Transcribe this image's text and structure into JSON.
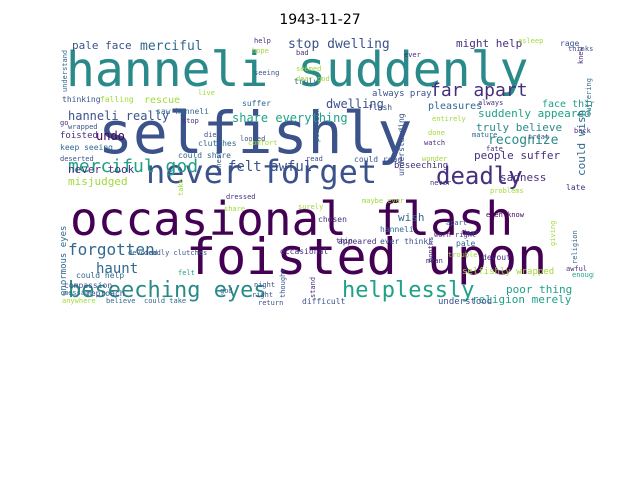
{
  "title": "1943-11-27",
  "palette": {
    "teal": "#2a8a8a",
    "navy": "#3b528b",
    "dark": "#440154",
    "purple": "#472f7d",
    "green": "#35b779",
    "lime": "#a0da39",
    "blue": "#31688e",
    "mint": "#1fa187"
  },
  "words": {
    "w1": "hanneli suddenly",
    "w2": "selfishly",
    "w3": "occasional flash",
    "w4": "foisted upon",
    "w5": "never forget",
    "w6": "beseeching eyes",
    "w7": "helplessly",
    "w8": "deadly",
    "w9": "far apart",
    "w10": "merciful god",
    "w11": "forgotten",
    "w12": "felt awful",
    "w13": "haunt",
    "w14": "merciful",
    "w15": "pale face",
    "w16": "stop dwelling",
    "w17": "might help",
    "w18": "hanneli really",
    "w19": "share everything",
    "w20": "undo",
    "w21": "dwelling",
    "w22": "suddenly appeared",
    "w23": "recognize",
    "w24": "truly believe",
    "w25": "people suffer",
    "w26": "never took",
    "w27": "misjudged",
    "w28": "rescue",
    "w29": "saw hanneli",
    "w30": "foisted",
    "w31": "could wish",
    "w32": "sadness",
    "w33": "wish",
    "w34": "beseeching",
    "w35": "poor thing",
    "w36": "religion merely",
    "w37": "pleasures",
    "w38": "selfishly wrapped",
    "w39": "always pray",
    "w40": "enormous eyes",
    "w41": "could help",
    "w42": "compassion",
    "w43": "reproach",
    "w44": "anywhere",
    "w45": "believe",
    "w46": "could take",
    "w47": "understood",
    "w48": "difficult",
    "w49": "return",
    "w50": "deadly clutches",
    "w51": "devoted",
    "w52": "appeared",
    "w53": "chosen",
    "w54": "ever thinks",
    "w55": "hanneli",
    "w56": "pale",
    "w57": "devout",
    "w58": "mean",
    "w59": "keep seeing",
    "w60": "deserted",
    "w61": "could share",
    "w62": "could read",
    "w63": "wonder",
    "w64": "face thin",
    "w65": "thinking",
    "w66": "falling",
    "w67": "suffer",
    "w68": "truly",
    "w69": "seeing",
    "w70": "late",
    "w71": "fate",
    "w72": "mature",
    "w73": "back",
    "w74": "even know",
    "w75": "worn right",
    "w76": "dear",
    "w77": "problems",
    "w78": "flash",
    "w79": "understanding",
    "w80": "entirely",
    "w81": "asleep",
    "w82": "rage",
    "w83": "awful",
    "w84": "thinks",
    "w85": "understand",
    "w86": "surely",
    "w87": "occasional",
    "w88": "clutches",
    "w89": "comfort",
    "w90": "dressed",
    "w91": "share",
    "w92": "thought",
    "w93": "stand",
    "w94": "maybe ever",
    "w95": "trouble",
    "w96": "read",
    "w97": "god",
    "w98": "help",
    "w99": "hope",
    "w100": "looked",
    "w101": "take",
    "w102": "seemed",
    "w103": "dear god",
    "w104": "bad",
    "w105": "message",
    "w106": "enough",
    "w107": "religion",
    "w108": "suffering",
    "w109": "months",
    "w110": "position",
    "w111": "always",
    "w112": "felt",
    "w113": "stop",
    "w114": "treat",
    "w115": "honest",
    "w116": "die",
    "w117": "done",
    "w118": "watch",
    "w119": "apart",
    "w120": "live",
    "w121": "ever",
    "w122": "thin",
    "w123": "knew",
    "w124": "night",
    "w125": "right",
    "w126": "go",
    "w127": "wrapped",
    "w128": "never",
    "w129": "giving"
  }
}
